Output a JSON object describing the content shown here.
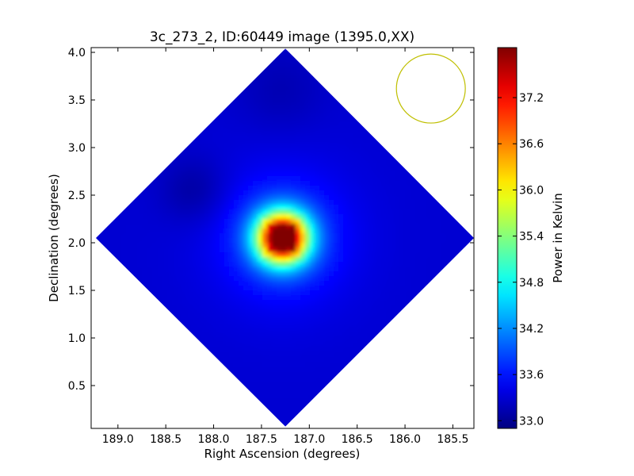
{
  "chart_data": {
    "type": "heatmap",
    "title": "3c_273_2, ID:60449 image (1395.0,XX)",
    "xlabel": "Right Ascension (degrees)",
    "ylabel": "Declination (degrees)",
    "xlim": [
      189.28,
      185.28
    ],
    "ylim": [
      0.05,
      4.05
    ],
    "x_ticks": [
      189.0,
      188.5,
      188.0,
      187.5,
      187.0,
      186.5,
      186.0,
      185.5
    ],
    "x_tick_labels": [
      "189.0",
      "188.5",
      "188.0",
      "187.5",
      "187.0",
      "186.5",
      "186.0",
      "185.5"
    ],
    "y_ticks": [
      0.5,
      1.0,
      1.5,
      2.0,
      2.5,
      3.0,
      3.5,
      4.0
    ],
    "y_tick_labels": [
      "0.5",
      "1.0",
      "1.5",
      "2.0",
      "2.5",
      "3.0",
      "3.5",
      "4.0"
    ],
    "colormap": "jet",
    "colorbar": {
      "label": "Power in Kelvin",
      "range": [
        32.9,
        37.85
      ],
      "ticks": [
        33.0,
        33.6,
        34.2,
        34.8,
        35.4,
        36.0,
        36.6,
        37.2
      ],
      "tick_labels": [
        "33.0",
        "33.6",
        "34.2",
        "34.8",
        "35.4",
        "36.0",
        "36.6",
        "37.2"
      ]
    },
    "map_footprint": {
      "shape": "diamond",
      "vertices": [
        [
          187.25,
          4.04
        ],
        [
          185.28,
          2.05
        ],
        [
          187.25,
          0.07
        ],
        [
          189.23,
          2.05
        ]
      ]
    },
    "peak": {
      "ra": 187.28,
      "dec": 2.05,
      "value": 37.8
    },
    "background_level": 33.3,
    "beam": {
      "center_ra": 185.73,
      "center_dec": 3.62,
      "radius_deg": 0.36,
      "color": "#bfbf00"
    }
  }
}
